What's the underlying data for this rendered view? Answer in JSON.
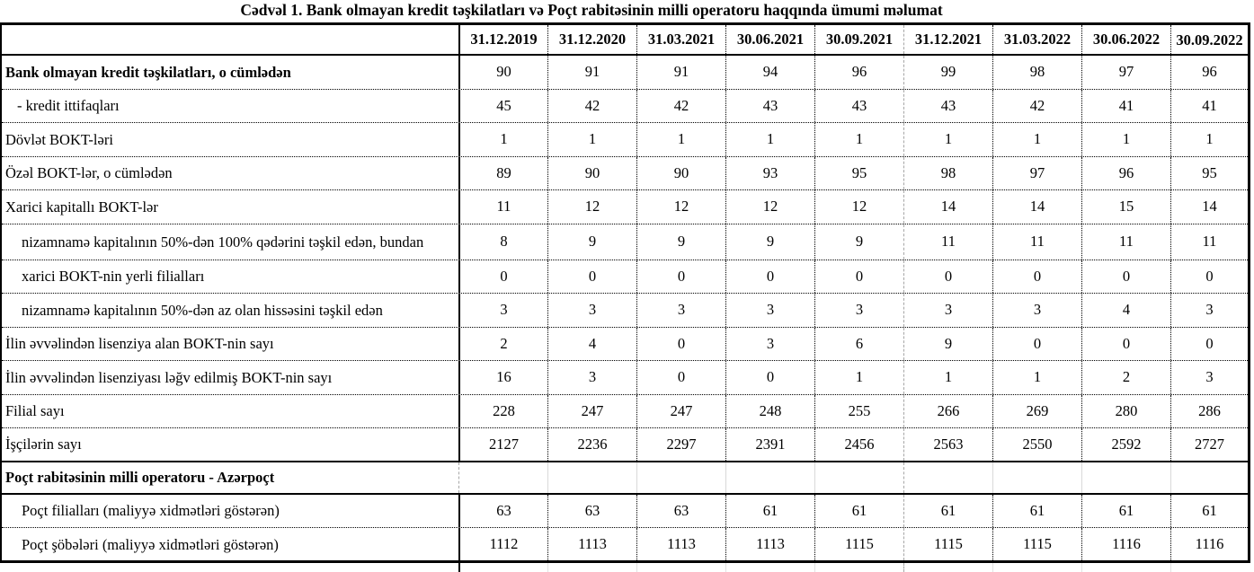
{
  "title": "Cədvəl 1. Bank olmayan kredit təşkilatları və Poçt rabitəsinin milli operatoru haqqında ümumi məlumat",
  "table": {
    "columns": [
      "31.12.2019",
      "31.12.2020",
      "31.03.2021",
      "30.06.2021",
      "30.09.2021",
      "31.12.2021",
      "31.03.2022",
      "30.06.2022",
      "30.09.2022"
    ],
    "rows": [
      {
        "label": "Bank olmayan kredit təşkilatları, o cümlədən",
        "bold": true,
        "indent": 0,
        "section": false,
        "values": [
          90,
          91,
          91,
          94,
          96,
          99,
          98,
          97,
          96
        ]
      },
      {
        "label": "- kredit ittifaqları",
        "bold": false,
        "indent": 1,
        "section": false,
        "values": [
          45,
          42,
          42,
          43,
          43,
          43,
          42,
          41,
          41
        ]
      },
      {
        "label": "Dövlət BOKT-ləri",
        "bold": false,
        "indent": 0,
        "section": false,
        "values": [
          1,
          1,
          1,
          1,
          1,
          1,
          1,
          1,
          1
        ]
      },
      {
        "label": "Özəl BOKT-lər, o cümlədən",
        "bold": false,
        "indent": 0,
        "section": false,
        "values": [
          89,
          90,
          90,
          93,
          95,
          98,
          97,
          96,
          95
        ]
      },
      {
        "label": "Xarici kapitallı BOKT-lər",
        "bold": false,
        "indent": 0,
        "section": false,
        "values": [
          11,
          12,
          12,
          12,
          12,
          14,
          14,
          15,
          14
        ]
      },
      {
        "label": "nizamnamə kapitalının 50%-dən 100% qədərini təşkil edən, bundan",
        "bold": false,
        "indent": 2,
        "section": false,
        "twoline": true,
        "values": [
          8,
          9,
          9,
          9,
          9,
          11,
          11,
          11,
          11
        ]
      },
      {
        "label": "xarici BOKT-nin yerli filialları",
        "bold": false,
        "indent": 2,
        "section": false,
        "values": [
          0,
          0,
          0,
          0,
          0,
          0,
          0,
          0,
          0
        ]
      },
      {
        "label": "nizamnamə kapitalının 50%-dən az olan hissəsini  təşkil edən",
        "bold": false,
        "indent": 2,
        "section": false,
        "values": [
          3,
          3,
          3,
          3,
          3,
          3,
          3,
          4,
          3
        ]
      },
      {
        "label": "İlin əvvəlindən lisenziya alan BOKT-nin sayı",
        "bold": false,
        "indent": 0,
        "section": false,
        "values": [
          2,
          4,
          0,
          3,
          6,
          9,
          0,
          0,
          0
        ]
      },
      {
        "label": "İlin əvvəlindən lisenziyası ləğv edilmiş BOKT-nin sayı",
        "bold": false,
        "indent": 0,
        "section": false,
        "values": [
          16,
          3,
          0,
          0,
          1,
          1,
          1,
          2,
          3
        ]
      },
      {
        "label": "Filial sayı",
        "bold": false,
        "indent": 0,
        "section": false,
        "values": [
          228,
          247,
          247,
          248,
          255,
          266,
          269,
          280,
          286
        ]
      },
      {
        "label": "İşçilərin sayı",
        "bold": false,
        "indent": 0,
        "section": false,
        "values": [
          2127,
          2236,
          2297,
          2391,
          2456,
          2563,
          2550,
          2592,
          2727
        ]
      },
      {
        "label": "Poçt rabitəsinin milli operatoru - Azərpoçt",
        "bold": true,
        "indent": 0,
        "section": true,
        "values": []
      },
      {
        "label": "Poçt filialları (maliyyə xidmətləri göstərən)",
        "bold": false,
        "indent": 2,
        "section": false,
        "values": [
          63,
          63,
          63,
          61,
          61,
          61,
          61,
          61,
          61
        ]
      },
      {
        "label": "Poçt şöbələri (maliyyə xidmətləri göstərən)",
        "bold": false,
        "indent": 2,
        "section": false,
        "values": [
          1112,
          1113,
          1113,
          1113,
          1115,
          1115,
          1115,
          1116,
          1116
        ]
      }
    ]
  }
}
